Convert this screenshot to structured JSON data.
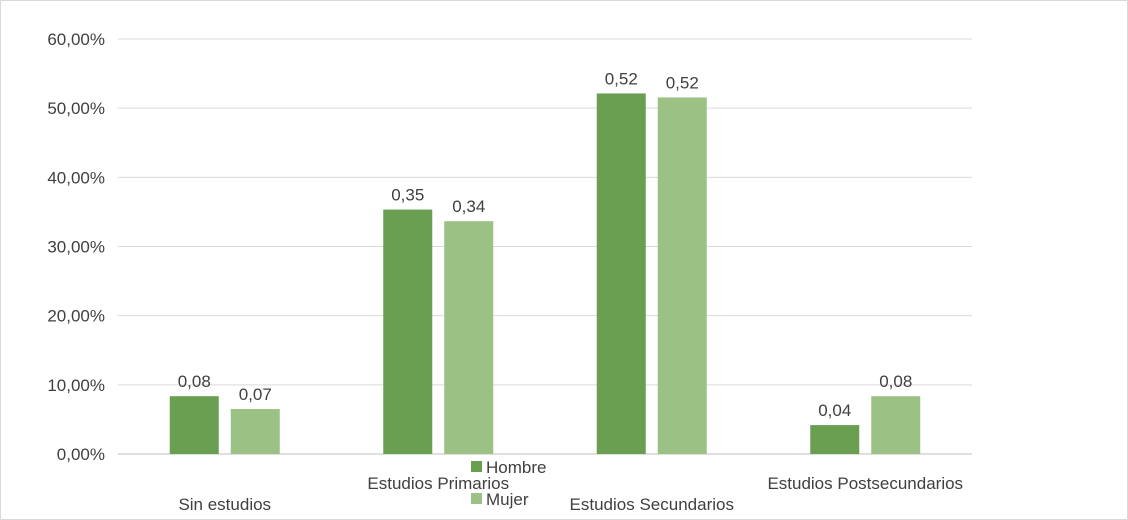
{
  "chart_data": {
    "type": "bar",
    "categories": [
      "Sin estudios",
      "Estudios Primarios",
      "Estudios Secundarios",
      "Estudios Postsecundarios"
    ],
    "series": [
      {
        "name": "Hombre",
        "color": "#6a9e51",
        "values": [
          0.0836,
          0.3534,
          0.5213,
          0.0418
        ],
        "labels": [
          "0,08",
          "0,35",
          "0,52",
          "0,04"
        ]
      },
      {
        "name": "Mujer",
        "color": "#9bc184",
        "values": [
          0.065,
          0.3366,
          0.5155,
          0.0835
        ],
        "labels": [
          "0,07",
          "0,34",
          "0,52",
          "0,08"
        ]
      }
    ],
    "y_ticks": [
      0,
      0.1,
      0.2,
      0.3,
      0.4,
      0.5,
      0.6
    ],
    "y_tick_labels": [
      "0,00%",
      "10,00%",
      "20,00%",
      "30,00%",
      "40,00%",
      "50,00%",
      "60,00%"
    ],
    "ylim": [
      0,
      0.6
    ],
    "grid": true,
    "legend_position": "bottom-center",
    "gridline_color": "#d9d9d9",
    "axis_color": "#bfbfbf",
    "text_color": "#404040"
  }
}
